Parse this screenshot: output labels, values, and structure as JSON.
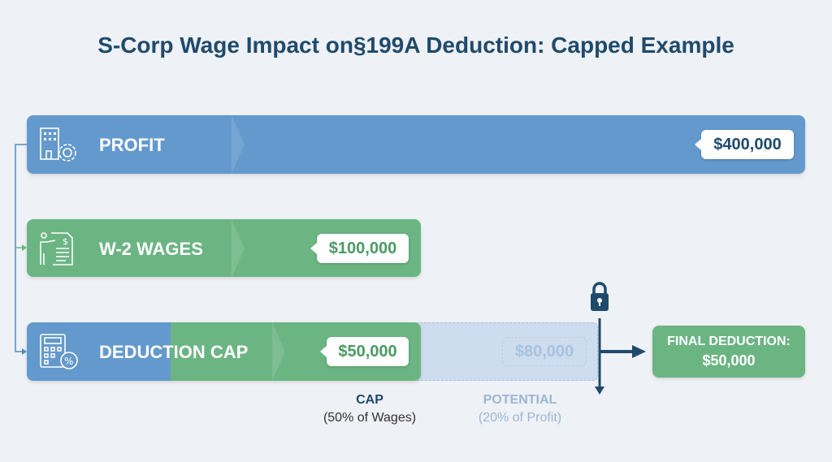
{
  "title": "S-Corp Wage Impact on§199A Deduction: Capped Example",
  "rows": [
    {
      "label": "PROFIT",
      "value": "$400,000",
      "icon": "building-gear-icon"
    },
    {
      "label": "W-2 WAGES",
      "value": "$100,000",
      "icon": "employee-document-icon"
    },
    {
      "label": "DEDUCTION CAP",
      "value": "$50,000",
      "icon": "calculator-percent-icon"
    }
  ],
  "potential": {
    "value": "$80,000",
    "label": "POTENTIAL",
    "sub": "(20% of Profit)"
  },
  "cap": {
    "label": "CAP",
    "sub": "(50% of Wages)"
  },
  "final": {
    "line1": "FINAL DEDUCTION:",
    "line2": "$50,000"
  },
  "colors": {
    "blue": "#6399cc",
    "green": "#6bb583",
    "navy": "#1f4a6b"
  }
}
